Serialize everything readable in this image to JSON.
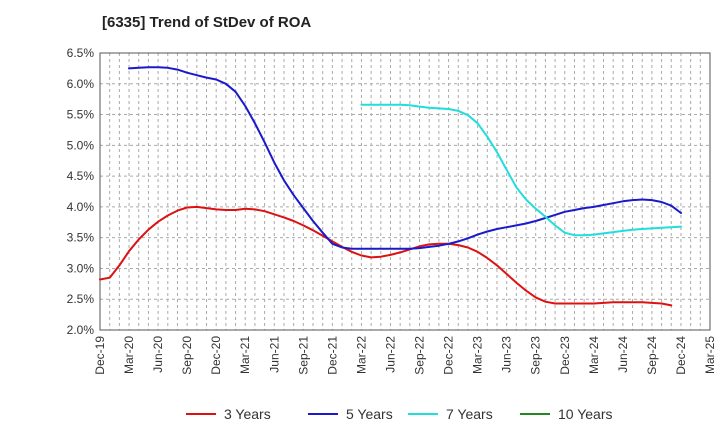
{
  "chart_data": {
    "type": "line",
    "title": "[6335]  Trend of StDev of ROA",
    "xlabel": "",
    "ylabel": "",
    "x_ticks": [
      "Dec-19",
      "Mar-20",
      "Jun-20",
      "Sep-20",
      "Dec-20",
      "Mar-21",
      "Jun-21",
      "Sep-21",
      "Dec-21",
      "Mar-22",
      "Jun-22",
      "Sep-22",
      "Dec-22",
      "Mar-23",
      "Jun-23",
      "Sep-23",
      "Dec-23",
      "Mar-24",
      "Jun-24",
      "Sep-24",
      "Dec-24",
      "Mar-25"
    ],
    "y_ticks": [
      "2.0%",
      "2.5%",
      "3.0%",
      "3.5%",
      "4.0%",
      "4.5%",
      "5.0%",
      "5.5%",
      "6.0%",
      "6.5%"
    ],
    "ylim": [
      2.0,
      6.5
    ],
    "grid": "dashed, both axes",
    "legend_position": "bottom",
    "series": [
      {
        "name": "3 Years",
        "color": "#dd1111",
        "points": [
          [
            "Dec-19",
            2.82
          ],
          [
            "Jan-20",
            2.85
          ],
          [
            "Feb-20",
            3.05
          ],
          [
            "Mar-20",
            3.28
          ],
          [
            "Apr-20",
            3.47
          ],
          [
            "May-20",
            3.63
          ],
          [
            "Jun-20",
            3.76
          ],
          [
            "Jul-20",
            3.86
          ],
          [
            "Aug-20",
            3.94
          ],
          [
            "Sep-20",
            3.99
          ],
          [
            "Oct-20",
            4.0
          ],
          [
            "Nov-20",
            3.98
          ],
          [
            "Dec-20",
            3.96
          ],
          [
            "Jan-21",
            3.95
          ],
          [
            "Feb-21",
            3.95
          ],
          [
            "Mar-21",
            3.97
          ],
          [
            "Apr-21",
            3.96
          ],
          [
            "May-21",
            3.93
          ],
          [
            "Jun-21",
            3.88
          ],
          [
            "Jul-21",
            3.83
          ],
          [
            "Aug-21",
            3.77
          ],
          [
            "Sep-21",
            3.7
          ],
          [
            "Oct-21",
            3.62
          ],
          [
            "Nov-21",
            3.53
          ],
          [
            "Dec-21",
            3.44
          ],
          [
            "Jan-22",
            3.35
          ],
          [
            "Feb-22",
            3.27
          ],
          [
            "Mar-22",
            3.21
          ],
          [
            "Apr-22",
            3.18
          ],
          [
            "May-22",
            3.19
          ],
          [
            "Jun-22",
            3.22
          ],
          [
            "Jul-22",
            3.26
          ],
          [
            "Aug-22",
            3.31
          ],
          [
            "Sep-22",
            3.36
          ],
          [
            "Oct-22",
            3.39
          ],
          [
            "Nov-22",
            3.4
          ],
          [
            "Dec-22",
            3.4
          ],
          [
            "Jan-23",
            3.38
          ],
          [
            "Feb-23",
            3.34
          ],
          [
            "Mar-23",
            3.27
          ],
          [
            "Apr-23",
            3.17
          ],
          [
            "May-23",
            3.05
          ],
          [
            "Jun-23",
            2.91
          ],
          [
            "Jul-23",
            2.77
          ],
          [
            "Aug-23",
            2.64
          ],
          [
            "Sep-23",
            2.53
          ],
          [
            "Oct-23",
            2.46
          ],
          [
            "Nov-23",
            2.43
          ],
          [
            "Dec-23",
            2.43
          ],
          [
            "Jan-24",
            2.43
          ],
          [
            "Feb-24",
            2.43
          ],
          [
            "Mar-24",
            2.43
          ],
          [
            "Apr-24",
            2.44
          ],
          [
            "May-24",
            2.45
          ],
          [
            "Jun-24",
            2.45
          ],
          [
            "Jul-24",
            2.45
          ],
          [
            "Aug-24",
            2.45
          ],
          [
            "Sep-24",
            2.44
          ],
          [
            "Oct-24",
            2.43
          ],
          [
            "Nov-24",
            2.4
          ]
        ]
      },
      {
        "name": "5 Years",
        "color": "#1a1acc",
        "points": [
          [
            "Mar-20",
            6.25
          ],
          [
            "Apr-20",
            6.26
          ],
          [
            "May-20",
            6.27
          ],
          [
            "Jun-20",
            6.27
          ],
          [
            "Jul-20",
            6.26
          ],
          [
            "Aug-20",
            6.23
          ],
          [
            "Sep-20",
            6.18
          ],
          [
            "Oct-20",
            6.14
          ],
          [
            "Nov-20",
            6.1
          ],
          [
            "Dec-20",
            6.07
          ],
          [
            "Jan-21",
            6.0
          ],
          [
            "Feb-21",
            5.87
          ],
          [
            "Mar-21",
            5.64
          ],
          [
            "Apr-21",
            5.36
          ],
          [
            "May-21",
            5.05
          ],
          [
            "Jun-21",
            4.72
          ],
          [
            "Jul-21",
            4.43
          ],
          [
            "Aug-21",
            4.19
          ],
          [
            "Sep-21",
            3.98
          ],
          [
            "Oct-21",
            3.77
          ],
          [
            "Nov-21",
            3.58
          ],
          [
            "Dec-21",
            3.4
          ],
          [
            "Jan-22",
            3.34
          ],
          [
            "Feb-22",
            3.32
          ],
          [
            "Mar-22",
            3.32
          ],
          [
            "Apr-22",
            3.32
          ],
          [
            "May-22",
            3.32
          ],
          [
            "Jun-22",
            3.32
          ],
          [
            "Jul-22",
            3.32
          ],
          [
            "Aug-22",
            3.32
          ],
          [
            "Sep-22",
            3.33
          ],
          [
            "Oct-22",
            3.35
          ],
          [
            "Nov-22",
            3.37
          ],
          [
            "Dec-22",
            3.4
          ],
          [
            "Jan-23",
            3.44
          ],
          [
            "Feb-23",
            3.49
          ],
          [
            "Mar-23",
            3.55
          ],
          [
            "Apr-23",
            3.6
          ],
          [
            "May-23",
            3.64
          ],
          [
            "Jun-23",
            3.67
          ],
          [
            "Jul-23",
            3.7
          ],
          [
            "Aug-23",
            3.73
          ],
          [
            "Sep-23",
            3.77
          ],
          [
            "Oct-23",
            3.82
          ],
          [
            "Nov-23",
            3.87
          ],
          [
            "Dec-23",
            3.92
          ],
          [
            "Jan-24",
            3.95
          ],
          [
            "Feb-24",
            3.98
          ],
          [
            "Mar-24",
            4.0
          ],
          [
            "Apr-24",
            4.03
          ],
          [
            "May-24",
            4.06
          ],
          [
            "Jun-24",
            4.09
          ],
          [
            "Jul-24",
            4.11
          ],
          [
            "Aug-24",
            4.12
          ],
          [
            "Sep-24",
            4.11
          ],
          [
            "Oct-24",
            4.08
          ],
          [
            "Nov-24",
            4.02
          ],
          [
            "Dec-24",
            3.9
          ]
        ]
      },
      {
        "name": "7 Years",
        "color": "#22dddd",
        "points": [
          [
            "Mar-22",
            5.66
          ],
          [
            "Apr-22",
            5.66
          ],
          [
            "May-22",
            5.66
          ],
          [
            "Jun-22",
            5.66
          ],
          [
            "Jul-22",
            5.66
          ],
          [
            "Aug-22",
            5.65
          ],
          [
            "Sep-22",
            5.63
          ],
          [
            "Oct-22",
            5.61
          ],
          [
            "Nov-22",
            5.6
          ],
          [
            "Dec-22",
            5.59
          ],
          [
            "Jan-23",
            5.56
          ],
          [
            "Feb-23",
            5.49
          ],
          [
            "Mar-23",
            5.36
          ],
          [
            "Apr-23",
            5.14
          ],
          [
            "May-23",
            4.89
          ],
          [
            "Jun-23",
            4.6
          ],
          [
            "Jul-23",
            4.32
          ],
          [
            "Aug-23",
            4.12
          ],
          [
            "Sep-23",
            3.97
          ],
          [
            "Oct-23",
            3.84
          ],
          [
            "Nov-23",
            3.7
          ],
          [
            "Dec-23",
            3.58
          ],
          [
            "Jan-24",
            3.54
          ],
          [
            "Feb-24",
            3.54
          ],
          [
            "Mar-24",
            3.55
          ],
          [
            "Apr-24",
            3.57
          ],
          [
            "May-24",
            3.59
          ],
          [
            "Jun-24",
            3.61
          ],
          [
            "Jul-24",
            3.63
          ],
          [
            "Aug-24",
            3.64
          ],
          [
            "Sep-24",
            3.65
          ],
          [
            "Oct-24",
            3.66
          ],
          [
            "Nov-24",
            3.67
          ],
          [
            "Dec-24",
            3.68
          ]
        ]
      },
      {
        "name": "10 Years",
        "color": "#228822",
        "points": []
      }
    ]
  }
}
